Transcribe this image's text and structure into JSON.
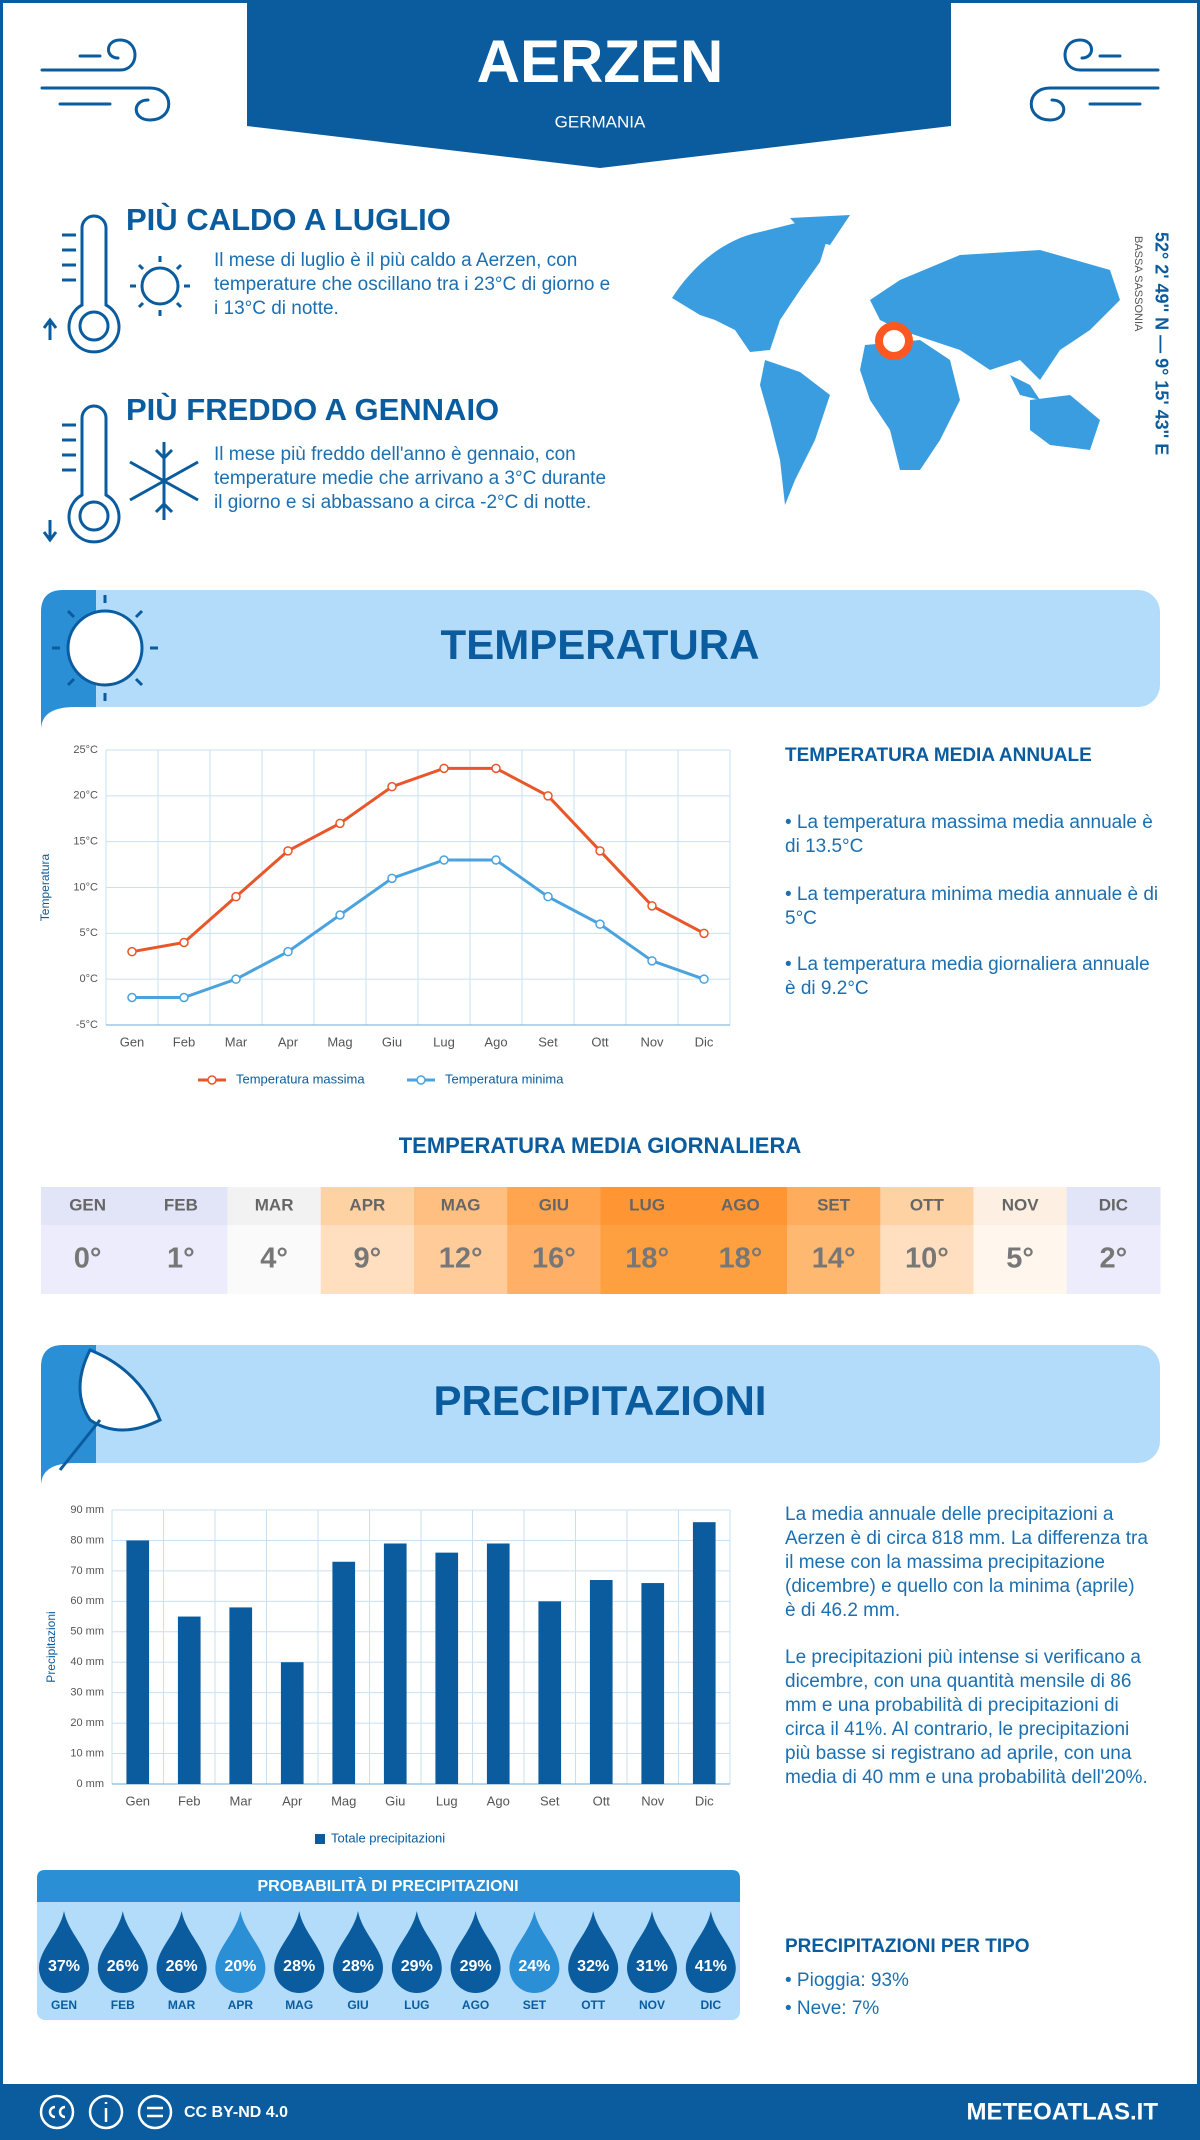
{
  "header": {
    "title": "AERZEN",
    "subtitle": "GERMANIA"
  },
  "warmest": {
    "title": "PIÙ CALDO A LUGLIO",
    "text": "Il mese di luglio è il più caldo a Aerzen, con temperature che oscillano tra i 23°C di giorno e i 13°C di notte."
  },
  "coldest": {
    "title": "PIÙ FREDDO A GENNAIO",
    "text": "Il mese più freddo dell'anno è gennaio, con temperature medie che arrivano a 3°C durante il giorno e si abbassano a circa -2°C di notte."
  },
  "location": {
    "coordinates": "52° 2' 49'' N — 9° 15' 43'' E",
    "region": "BASSA SASSONIA"
  },
  "temperature": {
    "title": "TEMPERATURA",
    "chart": {
      "type": "line",
      "ylabel": "Temperatura",
      "categories": [
        "Gen",
        "Feb",
        "Mar",
        "Apr",
        "Mag",
        "Giu",
        "Lug",
        "Ago",
        "Set",
        "Ott",
        "Nov",
        "Dic"
      ],
      "series": [
        {
          "name": "Temperatura massima",
          "color": "#e8562a",
          "values": [
            3,
            4,
            9,
            14,
            17,
            21,
            23,
            23,
            20,
            14,
            8,
            5
          ]
        },
        {
          "name": "Temperatura minima",
          "color": "#4aa3df",
          "values": [
            -2,
            -2,
            0,
            3,
            7,
            11,
            13,
            13,
            9,
            6,
            2,
            0
          ]
        }
      ],
      "ylim": [
        -5,
        25
      ],
      "yticks": [
        {
          "value": -5,
          "label": "-5°C"
        },
        {
          "value": 0,
          "label": "0°C"
        },
        {
          "value": 5,
          "label": "5°C"
        },
        {
          "value": 10,
          "label": "10°C"
        },
        {
          "value": 15,
          "label": "15°C"
        },
        {
          "value": 20,
          "label": "20°C"
        },
        {
          "value": 25,
          "label": "25°C"
        }
      ],
      "grid": true
    },
    "summary": {
      "title": "TEMPERATURA MEDIA ANNUALE",
      "items": [
        "• La temperatura massima media annuale è di 13.5°C",
        "• La temperatura minima media annuale è di 5°C",
        "• La temperatura media giornaliera annuale è di 9.2°C"
      ]
    }
  },
  "daily_temperature": {
    "title": "TEMPERATURA MEDIA GIORNALIERA",
    "months": [
      "GEN",
      "FEB",
      "MAR",
      "APR",
      "MAG",
      "GIU",
      "LUG",
      "AGO",
      "SET",
      "OTT",
      "NOV",
      "DIC"
    ],
    "values": [
      0,
      1,
      4,
      9,
      12,
      16,
      18,
      18,
      14,
      10,
      5,
      2
    ],
    "value_labels": [
      "0°",
      "1°",
      "4°",
      "9°",
      "12°",
      "16°",
      "18°",
      "18°",
      "14°",
      "10°",
      "5°",
      "2°"
    ]
  },
  "precipitation": {
    "title": "PRECIPITAZIONI",
    "chart": {
      "type": "bar",
      "ylabel": "Precipitazioni",
      "categories": [
        "Gen",
        "Feb",
        "Mar",
        "Apr",
        "Mag",
        "Giu",
        "Lug",
        "Ago",
        "Set",
        "Ott",
        "Nov",
        "Dic"
      ],
      "series": [
        {
          "name": "Totale precipitazioni",
          "color": "#0a5c9e",
          "values": [
            80,
            55,
            58,
            40,
            73,
            79,
            76,
            79,
            60,
            67,
            66,
            86
          ]
        }
      ],
      "ylim": [
        0,
        90
      ],
      "yticks": [
        {
          "value": 0,
          "label": "0 mm"
        },
        {
          "value": 10,
          "label": "10 mm"
        },
        {
          "value": 20,
          "label": "20 mm"
        },
        {
          "value": 30,
          "label": "30 mm"
        },
        {
          "value": 40,
          "label": "40 mm"
        },
        {
          "value": 50,
          "label": "50 mm"
        },
        {
          "value": 60,
          "label": "60 mm"
        },
        {
          "value": 70,
          "label": "70 mm"
        },
        {
          "value": 80,
          "label": "80 mm"
        },
        {
          "value": 90,
          "label": "90 mm"
        }
      ],
      "grid": true
    },
    "text": [
      "La media annuale delle precipitazioni a Aerzen è di circa 818 mm. La differenza tra il mese con la massima precipitazione (dicembre) e quello con la minima (aprile) è di 46.2 mm.",
      "Le precipitazioni più intense si verificano a dicembre, con una quantità mensile di 86 mm e una probabilità di precipitazioni di circa il 41%. Al contrario, le precipitazioni più basse si registrano ad aprile, con una media di 40 mm e una probabilità dell'20%."
    ]
  },
  "precipitation_probability": {
    "title": "PROBABILITÀ DI PRECIPITAZIONI",
    "months": [
      "GEN",
      "FEB",
      "MAR",
      "APR",
      "MAG",
      "GIU",
      "LUG",
      "AGO",
      "SET",
      "OTT",
      "NOV",
      "DIC"
    ],
    "values": [
      37,
      26,
      26,
      20,
      28,
      28,
      29,
      29,
      24,
      32,
      31,
      41
    ],
    "value_labels": [
      "37%",
      "26%",
      "26%",
      "20%",
      "28%",
      "28%",
      "29%",
      "29%",
      "24%",
      "32%",
      "31%",
      "41%"
    ]
  },
  "precipitation_type": {
    "title": "PRECIPITAZIONI PER TIPO",
    "items": [
      "• Pioggia: 93%",
      "• Neve: 7%"
    ]
  },
  "footer": {
    "license": "CC BY-ND 4.0",
    "site": "METEOATLAS.IT"
  }
}
